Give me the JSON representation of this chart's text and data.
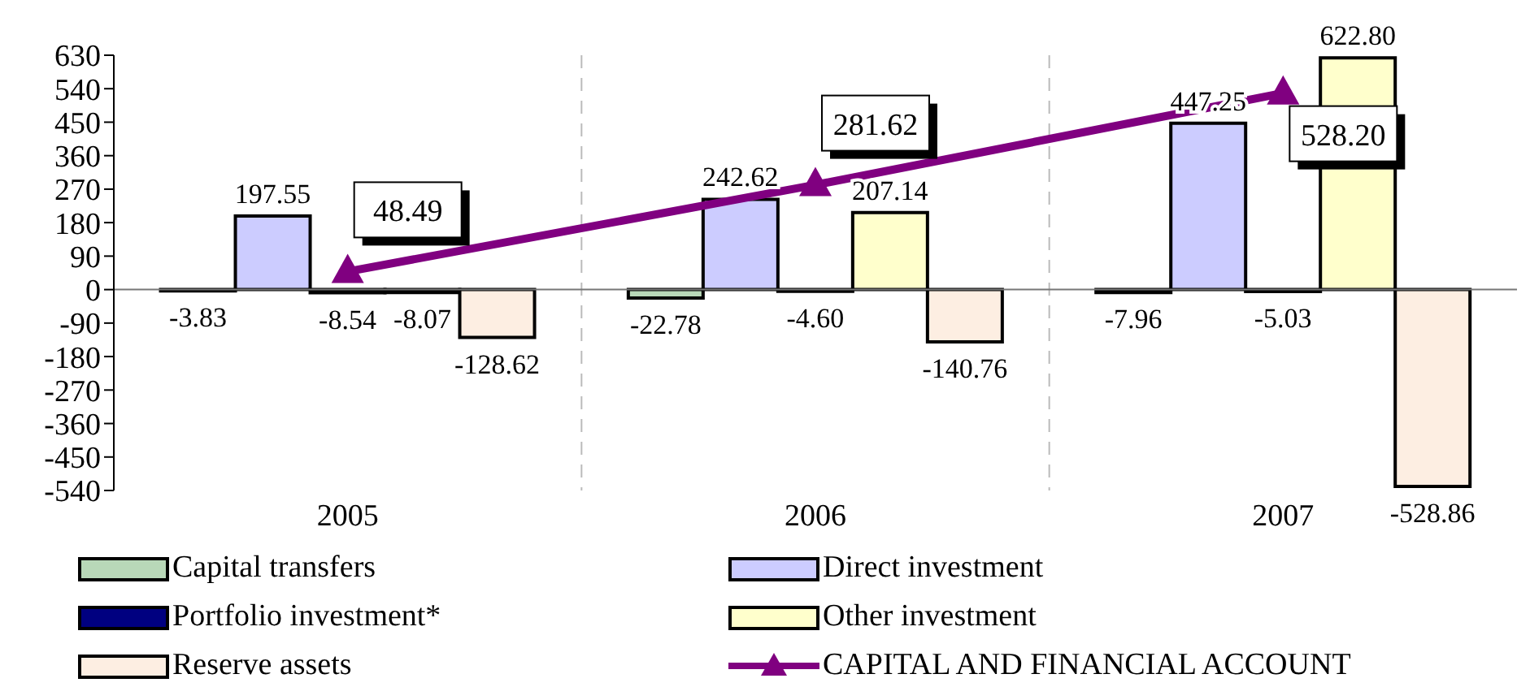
{
  "chart_data": {
    "type": "bar",
    "categories": [
      "2005",
      "2006",
      "2007"
    ],
    "series": [
      {
        "name": "Capital transfers",
        "color": "#b8d8b8",
        "values": [
          -3.83,
          -22.78,
          -7.96
        ],
        "value_labels": [
          "-3.83",
          "-22.78",
          "-7.96"
        ]
      },
      {
        "name": "Direct investment",
        "color": "#ccccff",
        "values": [
          197.55,
          242.62,
          447.25
        ],
        "value_labels": [
          "197.55",
          "242.62",
          "447.25"
        ]
      },
      {
        "name": "Portfolio investment*",
        "color": "#000080",
        "values": [
          -8.54,
          -4.6,
          -5.03
        ],
        "value_labels": [
          "-8.54",
          "-4.60",
          "-5.03"
        ]
      },
      {
        "name": "Other investment",
        "color": "#ffffcc",
        "values": [
          -8.07,
          207.14,
          622.8
        ],
        "value_labels": [
          "-8.07",
          "207.14",
          "622.80"
        ]
      },
      {
        "name": "Reserve assets",
        "color": "#fdeee2",
        "values": [
          -128.62,
          -140.76,
          -528.86
        ],
        "value_labels": [
          "-128.62",
          "-140.76",
          "-528.86"
        ]
      },
      {
        "name": "CAPITAL  AND FINANCIAL ACCOUNT",
        "type": "line",
        "color": "#800080",
        "values": [
          48.49,
          281.62,
          528.2
        ],
        "value_labels": [
          "48.49",
          "281.62",
          "528.20"
        ],
        "marker": "triangle"
      }
    ],
    "ylim": [
      -540,
      630
    ],
    "yticks": [
      -540,
      -450,
      -360,
      -270,
      -180,
      -90,
      0,
      90,
      180,
      270,
      360,
      450,
      540,
      630
    ],
    "grid": "x",
    "legend": "bottom"
  }
}
